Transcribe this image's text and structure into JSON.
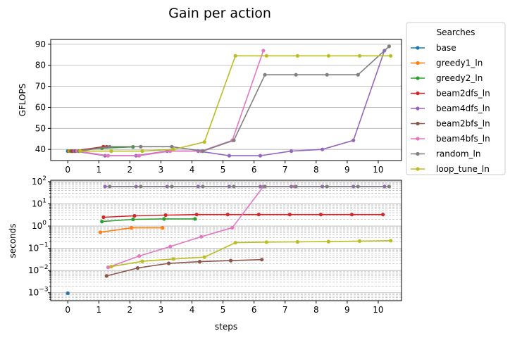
{
  "figure_title": "Gain per action",
  "chart_data": [
    {
      "type": "line",
      "ylabel": "GFLOPS",
      "xlabel": "",
      "xlim": [
        -0.55,
        10.75
      ],
      "ylim": [
        34.7,
        92.3
      ],
      "x_ticks": [
        0,
        1,
        2,
        3,
        4,
        5,
        6,
        7,
        8,
        9,
        10
      ],
      "y_ticks": [
        40,
        50,
        60,
        70,
        80,
        90
      ],
      "grid": "y-major",
      "series": [
        {
          "name": "base",
          "x": [
            0
          ],
          "y": [
            39.2
          ]
        },
        {
          "name": "greedy1_ln",
          "x": [
            0.05
          ],
          "y": [
            39.2
          ]
        },
        {
          "name": "greedy2_ln",
          "x": [
            0.1,
            1.1,
            2.1
          ],
          "y": [
            39.2,
            40.6,
            41.2
          ]
        },
        {
          "name": "beam2dfs_ln",
          "x": [
            0.15,
            1.15
          ],
          "y": [
            39.2,
            41.3
          ]
        },
        {
          "name": "beam4dfs_ln",
          "x": [
            0.2,
            1.2,
            2.2,
            3.2,
            4.2,
            5.2,
            6.2,
            7.2,
            8.2,
            9.2,
            10.2
          ],
          "y": [
            39.2,
            37.0,
            37.0,
            39.2,
            39.2,
            37.0,
            37.0,
            39.2,
            40.0,
            44.3,
            87.0
          ]
        },
        {
          "name": "beam2bfs_ln",
          "x": [
            0.25,
            1.25
          ],
          "y": [
            39.2,
            41.3
          ]
        },
        {
          "name": "beam4bfs_ln",
          "x": [
            0.3,
            1.3,
            2.3,
            3.3,
            4.3,
            5.3,
            6.3
          ],
          "y": [
            39.2,
            37.0,
            37.0,
            39.2,
            39.2,
            44.3,
            87.0
          ]
        },
        {
          "name": "random_ln",
          "x": [
            0.35,
            1.35,
            2.35,
            3.35,
            4.35,
            5.35,
            6.35,
            7.35,
            8.35,
            9.35,
            10.35
          ],
          "y": [
            39.2,
            41.3,
            41.3,
            41.3,
            39.2,
            44.3,
            75.5,
            75.5,
            75.5,
            75.5,
            89.0
          ]
        },
        {
          "name": "loop_tune_ln",
          "x": [
            0.4,
            1.4,
            2.4,
            3.4,
            4.4,
            5.4,
            6.4,
            7.4,
            8.4,
            9.4,
            10.4
          ],
          "y": [
            39.2,
            39.2,
            39.2,
            40.0,
            43.5,
            84.5,
            84.5,
            84.5,
            84.5,
            84.5,
            84.5
          ]
        }
      ]
    },
    {
      "type": "line",
      "ylabel": "seconds",
      "xlabel": "steps",
      "yscale": "log",
      "xlim": [
        -0.55,
        10.75
      ],
      "ylim": [
        0.00044,
        115
      ],
      "x_ticks": [
        0,
        1,
        2,
        3,
        4,
        5,
        6,
        7,
        8,
        9,
        10
      ],
      "y_ticks": [
        "10^-3",
        "10^-2",
        "10^-1",
        "10^0",
        "10^1",
        "10^2"
      ],
      "grid": "y-major-and-minor",
      "series": [
        {
          "name": "base",
          "x": [
            0
          ],
          "y": [
            0.00095
          ]
        },
        {
          "name": "greedy1_ln",
          "x": [
            1.05,
            2.05,
            3.05
          ],
          "y": [
            0.53,
            0.83,
            0.83
          ]
        },
        {
          "name": "greedy2_ln",
          "x": [
            1.1,
            2.1,
            3.1,
            4.1
          ],
          "y": [
            1.6,
            2.0,
            2.1,
            2.1
          ]
        },
        {
          "name": "beam2dfs_ln",
          "x": [
            1.15,
            2.15,
            3.15,
            4.15,
            5.15,
            6.15,
            7.15,
            8.15,
            9.15,
            10.15
          ],
          "y": [
            2.5,
            2.9,
            3.1,
            3.3,
            3.3,
            3.3,
            3.3,
            3.3,
            3.3,
            3.3
          ]
        },
        {
          "name": "beam4dfs_ln",
          "x": [
            1.2,
            2.2,
            3.2,
            4.2,
            5.2,
            6.2,
            7.2,
            8.2,
            9.2,
            10.2
          ],
          "y": [
            60,
            60,
            60,
            60,
            60,
            60,
            60,
            60,
            60,
            60
          ]
        },
        {
          "name": "beam2bfs_ln",
          "x": [
            1.25,
            2.25,
            3.25,
            4.25,
            5.25,
            6.25
          ],
          "y": [
            0.0057,
            0.013,
            0.021,
            0.025,
            0.028,
            0.031
          ]
        },
        {
          "name": "beam4bfs_ln",
          "x": [
            1.3,
            2.3,
            3.3,
            4.3,
            5.3,
            6.3,
            7.3
          ],
          "y": [
            0.014,
            0.045,
            0.12,
            0.33,
            0.85,
            60,
            60
          ]
        },
        {
          "name": "random_ln",
          "x": [
            1.35,
            2.35,
            3.35,
            4.35,
            5.35,
            6.35,
            7.35,
            8.35,
            9.35,
            10.35
          ],
          "y": [
            60,
            60,
            60,
            60,
            60,
            60,
            60,
            60,
            60,
            60
          ]
        },
        {
          "name": "loop_tune_ln",
          "x": [
            1.4,
            2.4,
            3.4,
            4.4,
            5.4,
            6.4,
            7.4,
            8.4,
            9.4,
            10.4
          ],
          "y": [
            0.015,
            0.026,
            0.033,
            0.04,
            0.18,
            0.19,
            0.195,
            0.2,
            0.21,
            0.22
          ]
        }
      ]
    }
  ],
  "legend": {
    "title": "Searches",
    "placement": "outside-right",
    "entries": [
      "base",
      "greedy1_ln",
      "greedy2_ln",
      "beam2dfs_ln",
      "beam4dfs_ln",
      "beam2bfs_ln",
      "beam4bfs_ln",
      "random_ln",
      "loop_tune_ln"
    ]
  },
  "colors": {
    "base": "#1f77b4",
    "greedy1_ln": "#ff7f0e",
    "greedy2_ln": "#2ca02c",
    "beam2dfs_ln": "#d62728",
    "beam4dfs_ln": "#9467bd",
    "beam2bfs_ln": "#8c564b",
    "beam4bfs_ln": "#e377c2",
    "random_ln": "#7f7f7f",
    "loop_tune_ln": "#bcbd22"
  }
}
